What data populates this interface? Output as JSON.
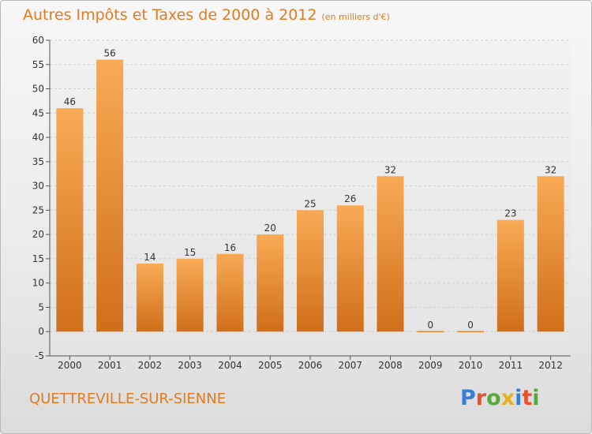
{
  "header": {
    "title": "Autres Impôts et Taxes de 2000 à 2012",
    "unit": "(en milliers d'€)"
  },
  "footer": {
    "commune": "QUETTREVILLE-SUR-SIENNE",
    "logo_letters": [
      "P",
      "r",
      "o",
      "x",
      "i",
      "t",
      "i"
    ],
    "logo_colors": [
      "#3a7fd0",
      "#e8502f",
      "#58a83a",
      "#e8b020",
      "#3a7fd0",
      "#e8502f",
      "#58a83a"
    ]
  },
  "chart_data": {
    "type": "bar",
    "title": "Autres Impôts et Taxes de 2000 à 2012",
    "subtitle": "(en milliers d'€)",
    "categories": [
      "2000",
      "2001",
      "2002",
      "2003",
      "2004",
      "2005",
      "2006",
      "2007",
      "2008",
      "2009",
      "2010",
      "2011",
      "2012"
    ],
    "values": [
      46,
      56,
      14,
      15,
      16,
      20,
      25,
      26,
      32,
      0,
      0,
      23,
      32
    ],
    "value_labels": [
      "46",
      "56",
      "14",
      "15",
      "16",
      "20",
      "25",
      "26",
      "32",
      "0",
      "0",
      "23",
      "32"
    ],
    "ylim": [
      -5,
      60
    ],
    "yticks": [
      -5,
      0,
      5,
      10,
      15,
      20,
      25,
      30,
      35,
      40,
      45,
      50,
      55,
      60
    ],
    "ytick_labels": [
      "-5",
      "0",
      "5",
      "10",
      "15",
      "20",
      "25",
      "30",
      "35",
      "40",
      "45",
      "50",
      "55",
      "60"
    ],
    "grid": true,
    "bar_color_light": "#f9aa55",
    "bar_color_dark": "#d06f1a"
  }
}
